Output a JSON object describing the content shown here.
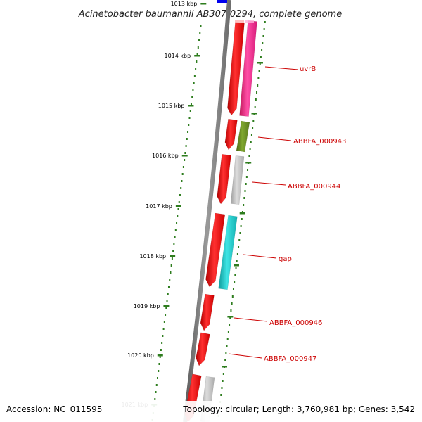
{
  "header": {
    "title": "Acinetobacter baumannii AB307-0294, complete genome"
  },
  "footer": {
    "accession": "Accession: NC_011595",
    "summary": "Topology: circular; Length: 3,760,981 bp; Genes: 3,542"
  },
  "colors": {
    "backbone": "#7a7a7a",
    "tick": "#2e7d1e",
    "label": "#cc0000",
    "forward_cds": "#ee1111",
    "pink": "#ff3399",
    "olive": "#6b8e23",
    "gray": "#bdbdbd",
    "cyan": "#19c7c7",
    "blue": "#0000ee"
  },
  "axis": {
    "tick_labels": [
      "1013 kbp",
      "1014 kbp",
      "1015 kbp",
      "1016 kbp",
      "1017 kbp",
      "1018 kbp",
      "1019 kbp",
      "1020 kbp",
      "1021 kbp"
    ]
  },
  "gene_labels": [
    {
      "name": "uvrB",
      "color": "#cc0000"
    },
    {
      "name": "ABBFA_000943",
      "color": "#cc0000"
    },
    {
      "name": "ABBFA_000944",
      "color": "#cc0000"
    },
    {
      "name": "gap",
      "color": "#cc0000"
    },
    {
      "name": "ABBFA_000946",
      "color": "#cc0000"
    },
    {
      "name": "ABBFA_000947",
      "color": "#cc0000"
    }
  ]
}
